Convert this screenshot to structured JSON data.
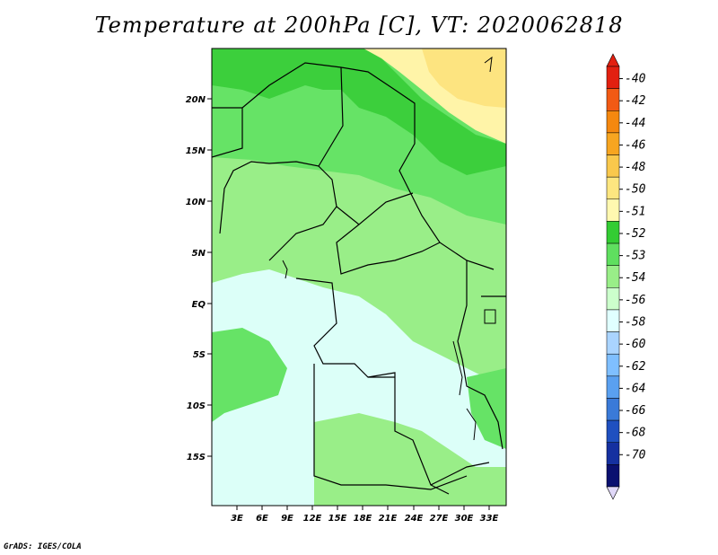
{
  "title": "Temperature at 200hPa [C], VT: 2020062818",
  "credit": "GrADS: IGES/COLA",
  "map": {
    "lat_labels": [
      "20N",
      "15N",
      "10N",
      "5N",
      "EQ",
      "5S",
      "10S",
      "15S"
    ],
    "lon_labels": [
      "3E",
      "6E",
      "9E",
      "12E",
      "15E",
      "18E",
      "21E",
      "24E",
      "27E",
      "30E",
      "33E"
    ]
  },
  "colorbar": {
    "labels": [
      "-40",
      "-42",
      "-44",
      "-46",
      "-48",
      "-50",
      "-51",
      "-52",
      "-53",
      "-54",
      "-56",
      "-58",
      "-60",
      "-62",
      "-64",
      "-66",
      "-68",
      "-70"
    ],
    "colors": [
      "#e22010",
      "#f25a14",
      "#f5880f",
      "#f7a520",
      "#f9c84c",
      "#fde680",
      "#fff8b0",
      "#33cc33",
      "#5fdf5f",
      "#99ee88",
      "#ccffcc",
      "#e0ffff",
      "#aad4ff",
      "#7fbfff",
      "#5aa0f0",
      "#3a7ad8",
      "#1f50c0",
      "#1530a0",
      "#0a1070"
    ],
    "min_tip_color": "#e0d8f8",
    "max_tip_color": "#e22010"
  }
}
